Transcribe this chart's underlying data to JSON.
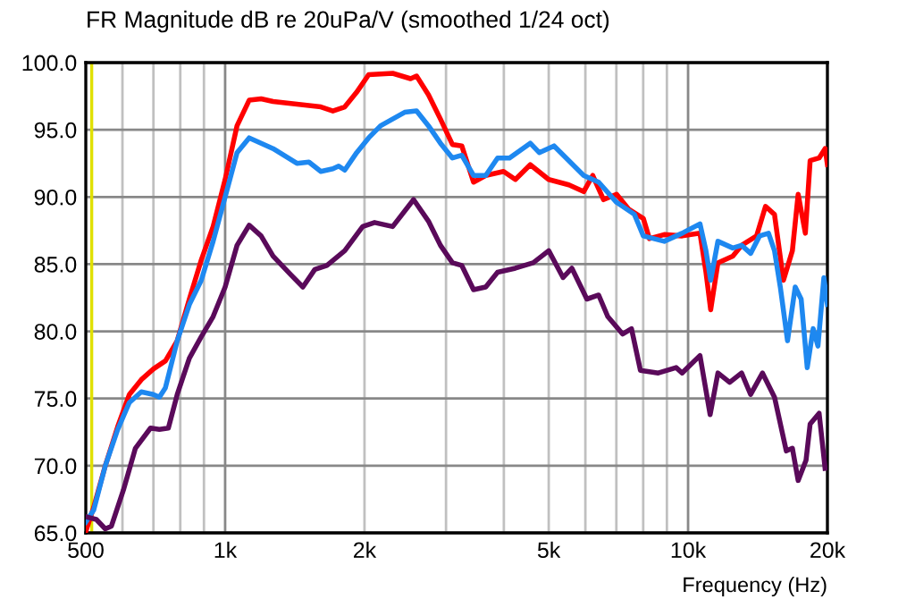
{
  "chart_data": {
    "type": "line",
    "title": "FR Magnitude dB re 20uPa/V (smoothed 1/24 oct)",
    "xlabel": "Frequency (Hz)",
    "log": "x",
    "grid": true,
    "line_style": "solid",
    "marker": "none",
    "xlim": [
      500,
      20000
    ],
    "ylim": [
      65,
      100
    ],
    "xticks": [
      {
        "value": 500,
        "label": "500"
      },
      {
        "value": 600,
        "label": null
      },
      {
        "value": 700,
        "label": null
      },
      {
        "value": 800,
        "label": null
      },
      {
        "value": 900,
        "label": null
      },
      {
        "value": 1000,
        "label": "1k"
      },
      {
        "value": 2000,
        "label": "2k"
      },
      {
        "value": 3000,
        "label": null
      },
      {
        "value": 4000,
        "label": null
      },
      {
        "value": 5000,
        "label": "5k"
      },
      {
        "value": 6000,
        "label": null
      },
      {
        "value": 7000,
        "label": null
      },
      {
        "value": 8000,
        "label": null
      },
      {
        "value": 9000,
        "label": null
      },
      {
        "value": 10000,
        "label": "10k"
      },
      {
        "value": 20000,
        "label": "20k"
      }
    ],
    "yticks": [
      {
        "value": 65,
        "label": "65.0"
      },
      {
        "value": 70,
        "label": "70.0"
      },
      {
        "value": 75,
        "label": "75.0"
      },
      {
        "value": 80,
        "label": "80.0"
      },
      {
        "value": 85,
        "label": "85.0"
      },
      {
        "value": 90,
        "label": "90.0"
      },
      {
        "value": 95,
        "label": "95.0"
      },
      {
        "value": 100,
        "label": "100.0"
      }
    ],
    "ref_lines": [
      {
        "axis": "x",
        "value": 515,
        "color": "#e0e000"
      }
    ],
    "series": [
      {
        "color": "#ff0000",
        "x": [
          500,
          520,
          551,
          586,
          621,
          659,
          700,
          743,
          788,
          837,
          888,
          942,
          1000,
          1061,
          1127,
          1196,
          1269,
          1429,
          1610,
          1709,
          1813,
          1924,
          2042,
          2301,
          2515,
          2591,
          2749,
          2918,
          3097,
          3245,
          3440,
          3655,
          3994,
          4236,
          4561,
          5000,
          5527,
          5950,
          6223,
          6568,
          7007,
          7437,
          8005,
          8250,
          8882,
          9708,
          10610,
          10930,
          11190,
          11600,
          12490,
          13050,
          14060,
          14700,
          15370,
          16070,
          16800,
          17290,
          17920,
          18350,
          19190,
          19770,
          20000
        ],
        "values": [
          65.1,
          66.9,
          70.0,
          72.9,
          75.3,
          76.4,
          77.2,
          77.8,
          79.3,
          82.4,
          85.3,
          87.8,
          91.3,
          95.3,
          97.2,
          97.3,
          97.1,
          96.9,
          96.7,
          96.4,
          96.7,
          97.8,
          99.1,
          99.2,
          98.8,
          99.0,
          97.6,
          95.8,
          93.9,
          93.8,
          91.1,
          91.6,
          91.9,
          91.3,
          92.4,
          91.3,
          90.9,
          90.4,
          91.6,
          89.8,
          90.2,
          89.1,
          88.4,
          86.9,
          87.2,
          87.1,
          87.3,
          84.4,
          81.6,
          85.1,
          85.6,
          86.4,
          87.1,
          89.3,
          88.7,
          83.8,
          86.0,
          90.2,
          87.3,
          92.7,
          92.9,
          93.6,
          92.4
        ]
      },
      {
        "color": "#1e88f0",
        "x": [
          500,
          520,
          551,
          586,
          621,
          659,
          700,
          721,
          743,
          788,
          837,
          888,
          942,
          1000,
          1061,
          1127,
          1196,
          1269,
          1429,
          1517,
          1610,
          1709,
          1759,
          1813,
          1924,
          2042,
          2167,
          2442,
          2591,
          2749,
          2918,
          3097,
          3245,
          3440,
          3655,
          3877,
          4114,
          4561,
          4770,
          5134,
          5527,
          5950,
          6410,
          7007,
          7659,
          8005,
          8882,
          9708,
          10610,
          10930,
          11190,
          11600,
          12490,
          13050,
          13650,
          14270,
          14920,
          15370,
          15820,
          16400,
          17040,
          17550,
          18090,
          18630,
          19080,
          19650,
          20000
        ],
        "values": [
          65.8,
          66.7,
          70.0,
          72.7,
          74.7,
          75.5,
          75.3,
          75.1,
          75.8,
          79.3,
          82.0,
          83.8,
          86.7,
          90.0,
          93.3,
          94.4,
          94.0,
          93.6,
          92.5,
          92.6,
          91.9,
          92.1,
          92.3,
          92.0,
          93.3,
          94.4,
          95.3,
          96.3,
          96.4,
          95.3,
          94.0,
          92.9,
          93.1,
          91.6,
          91.6,
          92.9,
          92.9,
          94.0,
          93.3,
          93.8,
          92.7,
          91.6,
          91.1,
          89.6,
          88.7,
          87.1,
          86.7,
          87.3,
          88.0,
          86.0,
          83.8,
          86.7,
          86.2,
          86.4,
          85.8,
          87.1,
          87.3,
          86.0,
          83.3,
          79.3,
          83.3,
          82.4,
          77.3,
          80.2,
          78.9,
          84.0,
          82.0
        ]
      },
      {
        "color": "#5a0a5a",
        "x": [
          500,
          527,
          551,
          568,
          603,
          640,
          690,
          721,
          754,
          788,
          837,
          888,
          942,
          1000,
          1061,
          1127,
          1196,
          1269,
          1387,
          1472,
          1562,
          1659,
          1813,
          1982,
          2103,
          2301,
          2553,
          2749,
          2918,
          3097,
          3245,
          3440,
          3655,
          3877,
          4236,
          4629,
          5000,
          5370,
          5611,
          6045,
          6410,
          6706,
          7219,
          7547,
          7889,
          8623,
          9425,
          9708,
          10610,
          11160,
          11600,
          12300,
          13050,
          13650,
          14480,
          15370,
          16300,
          16800,
          17290,
          17980,
          18350,
          19190,
          19770
        ],
        "values": [
          66.2,
          66.0,
          65.3,
          65.5,
          68.2,
          71.3,
          72.8,
          72.7,
          72.8,
          75.3,
          78.0,
          79.6,
          81.1,
          83.3,
          86.4,
          87.9,
          87.1,
          85.6,
          84.2,
          83.3,
          84.6,
          84.9,
          86.0,
          87.8,
          88.1,
          87.8,
          89.8,
          88.2,
          86.4,
          85.1,
          84.9,
          83.1,
          83.3,
          84.4,
          84.7,
          85.1,
          86.0,
          84.0,
          84.7,
          82.4,
          82.7,
          81.1,
          79.8,
          80.2,
          77.1,
          76.9,
          77.3,
          76.9,
          78.2,
          73.8,
          76.9,
          76.2,
          76.9,
          75.3,
          76.9,
          75.1,
          71.1,
          71.3,
          68.9,
          70.4,
          73.1,
          73.9,
          69.8
        ]
      }
    ]
  }
}
